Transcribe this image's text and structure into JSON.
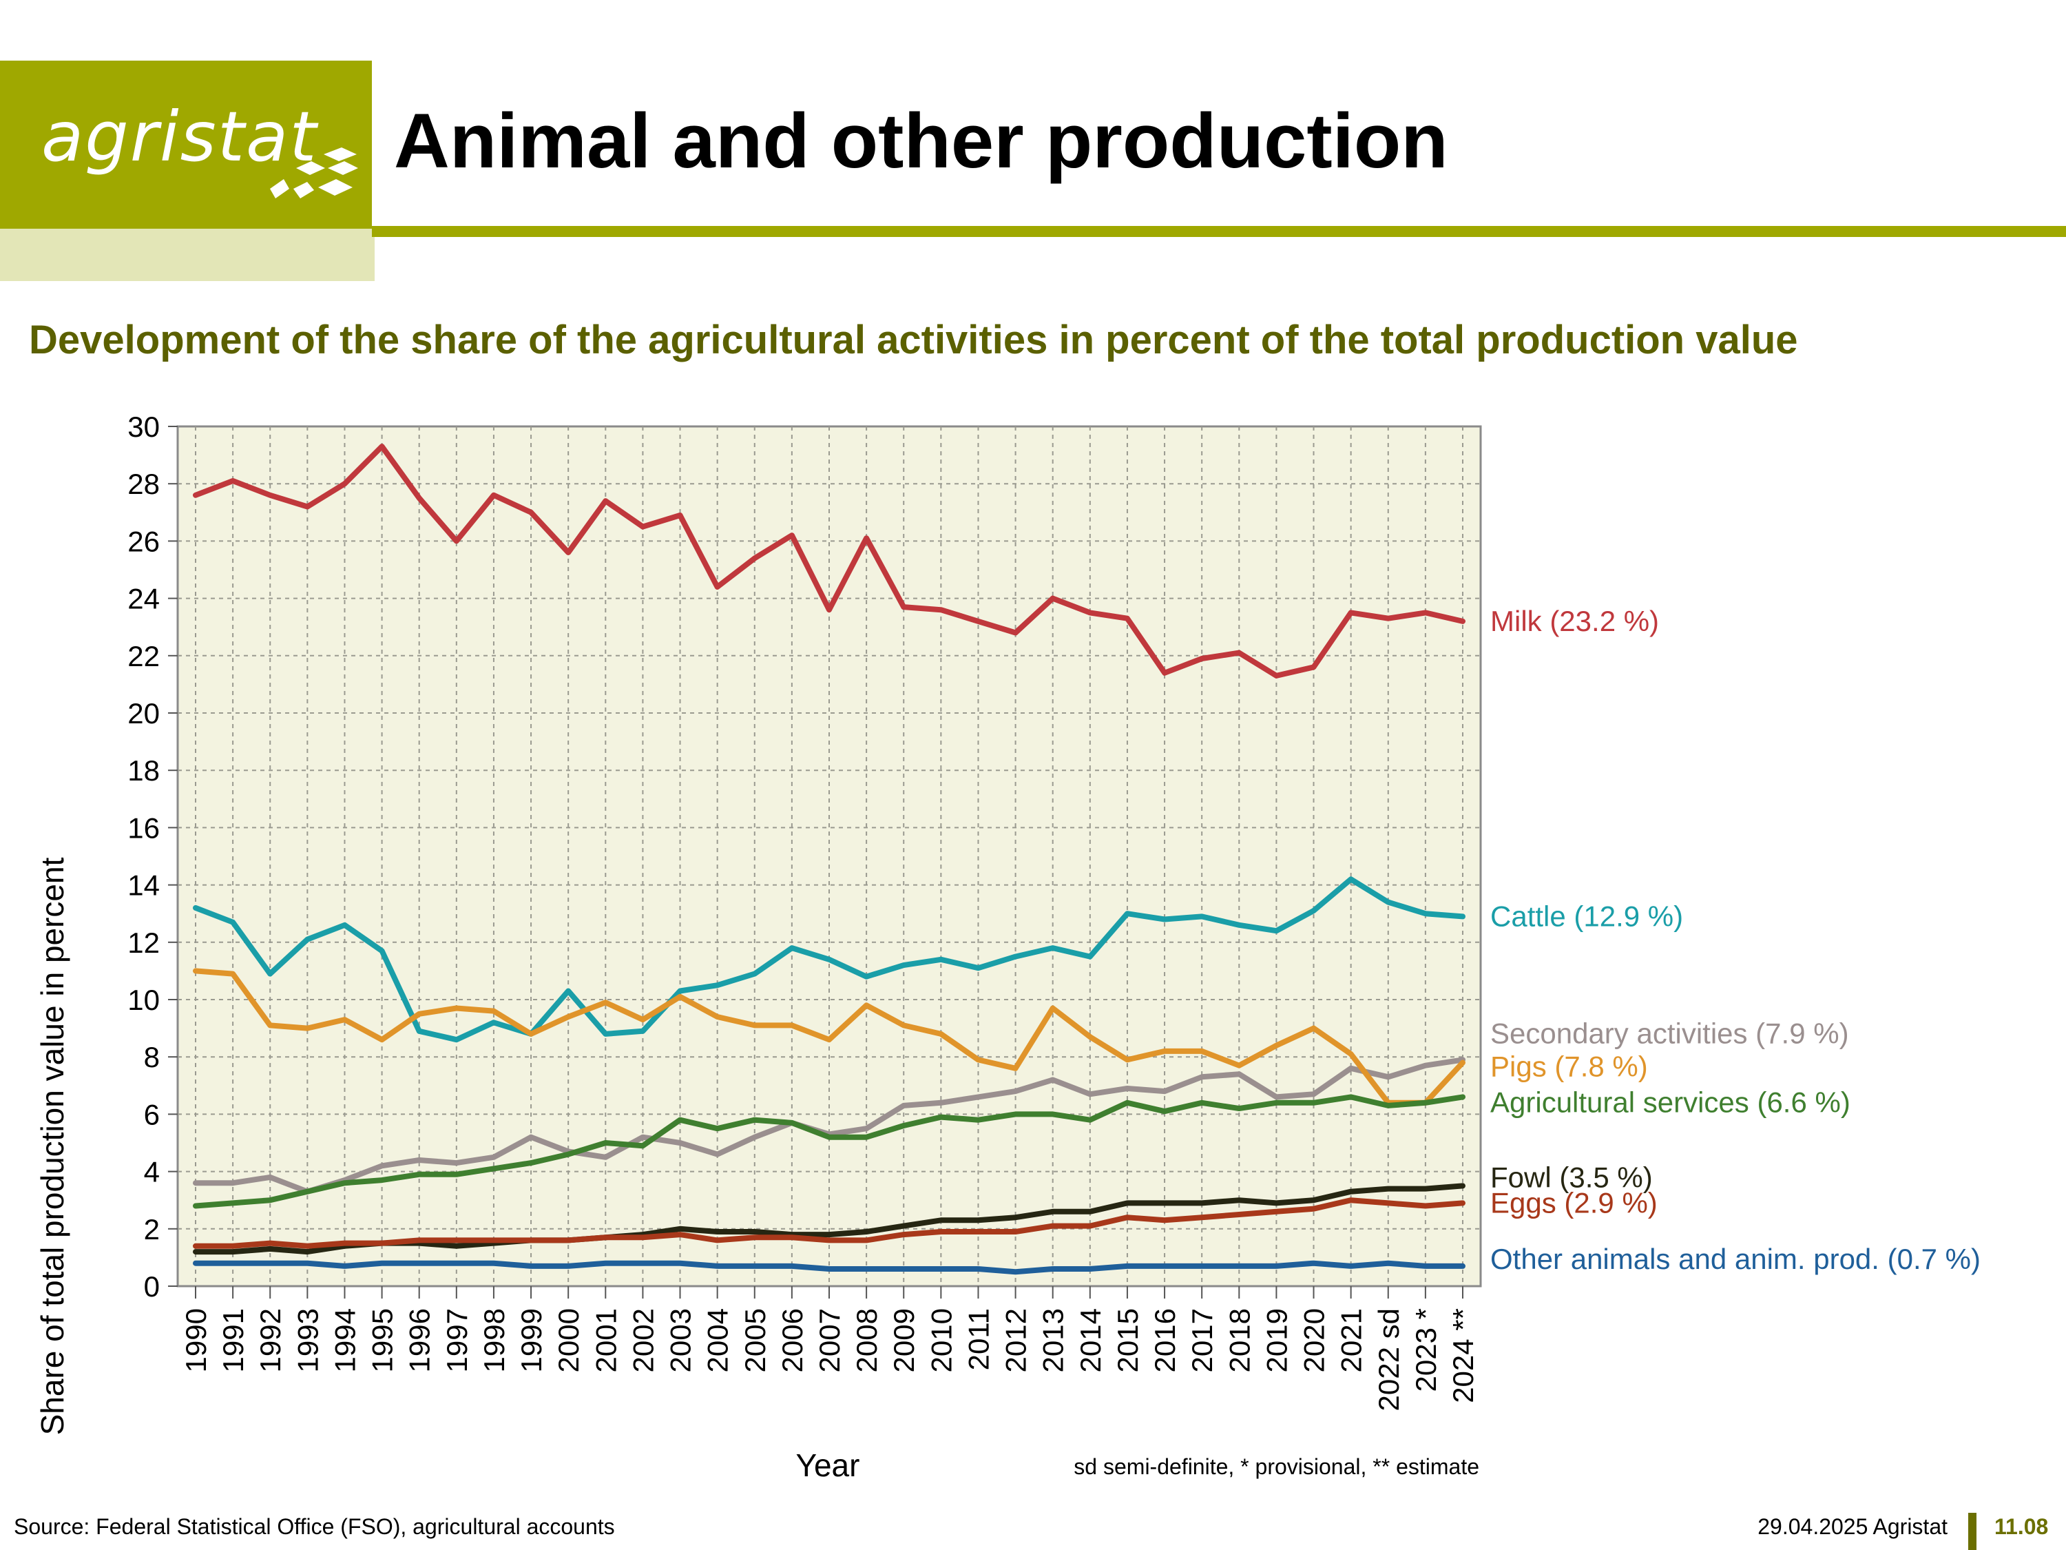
{
  "header": {
    "logo_text": "agristat",
    "title": "Animal and other production"
  },
  "subtitle": "Development of the share of the agricultural activities in percent of the total production value",
  "footer": {
    "source": "Source: Federal Statistical Office (FSO), agricultural accounts",
    "date": "29.04.2025 Agristat",
    "page": "11.08"
  },
  "colors": {
    "brand": "#9fa800",
    "brand_pale": "#e3e6b7",
    "plot_bg": "#f3f3e0",
    "subtitle": "#5b6000"
  },
  "chart_data": {
    "type": "line",
    "ylabel": "Share of total production value in percent",
    "xlabel": "Year",
    "note": "sd semi-definite, * provisional, ** estimate",
    "ylim": [
      0,
      30
    ],
    "yticks": [
      0,
      2,
      4,
      6,
      8,
      10,
      12,
      14,
      16,
      18,
      20,
      22,
      24,
      26,
      28,
      30
    ],
    "grid": true,
    "legend": "right-inline",
    "categories": [
      "1990",
      "1991",
      "1992",
      "1993",
      "1994",
      "1995",
      "1996",
      "1997",
      "1998",
      "1999",
      "2000",
      "2001",
      "2002",
      "2003",
      "2004",
      "2005",
      "2006",
      "2007",
      "2008",
      "2009",
      "2010",
      "2011",
      "2012",
      "2013",
      "2014",
      "2015",
      "2016",
      "2017",
      "2018",
      "2019",
      "2020",
      "2021",
      "2022 sd",
      "2023 *",
      "2024 **"
    ],
    "series": [
      {
        "name": "Milk (23.2 %)",
        "color": "#c0383c",
        "values": [
          27.6,
          28.1,
          27.6,
          27.2,
          28.0,
          29.3,
          27.5,
          26.0,
          27.6,
          27.0,
          25.6,
          27.4,
          26.5,
          26.9,
          24.4,
          25.4,
          26.2,
          23.6,
          26.1,
          23.7,
          23.6,
          23.2,
          22.8,
          24.0,
          23.5,
          23.3,
          21.4,
          21.9,
          22.1,
          21.3,
          21.6,
          23.5,
          23.3,
          23.5,
          23.2
        ]
      },
      {
        "name": "Cattle (12.9 %)",
        "color": "#1a9ea8",
        "values": [
          13.2,
          12.7,
          10.9,
          12.1,
          12.6,
          11.7,
          8.9,
          8.6,
          9.2,
          8.8,
          10.3,
          8.8,
          8.9,
          10.3,
          10.5,
          10.9,
          11.8,
          11.4,
          10.8,
          11.2,
          11.4,
          11.1,
          11.5,
          11.8,
          11.5,
          13.0,
          12.8,
          12.9,
          12.6,
          12.4,
          13.1,
          14.2,
          13.4,
          13.0,
          12.9
        ]
      },
      {
        "name": "Secondary activities (7.9 %)",
        "color": "#9a8f8f",
        "values": [
          3.6,
          3.6,
          3.8,
          3.3,
          3.7,
          4.2,
          4.4,
          4.3,
          4.5,
          5.2,
          4.7,
          4.5,
          5.2,
          5.0,
          4.6,
          5.2,
          5.7,
          5.3,
          5.5,
          6.3,
          6.4,
          6.6,
          6.8,
          7.2,
          6.7,
          6.9,
          6.8,
          7.3,
          7.4,
          6.6,
          6.7,
          7.6,
          7.3,
          7.7,
          7.9
        ]
      },
      {
        "name": "Pigs (7.8 %)",
        "color": "#e0942a",
        "values": [
          11.0,
          10.9,
          9.1,
          9.0,
          9.3,
          8.6,
          9.5,
          9.7,
          9.6,
          8.8,
          9.4,
          9.9,
          9.3,
          10.1,
          9.4,
          9.1,
          9.1,
          8.6,
          9.8,
          9.1,
          8.8,
          7.9,
          7.6,
          9.7,
          8.7,
          7.9,
          8.2,
          8.2,
          7.7,
          8.4,
          9.0,
          8.1,
          6.4,
          6.4,
          7.8
        ]
      },
      {
        "name": "Agricultural services (6.6 %)",
        "color": "#3f7f2f",
        "values": [
          2.8,
          2.9,
          3.0,
          3.3,
          3.6,
          3.7,
          3.9,
          3.9,
          4.1,
          4.3,
          4.6,
          5.0,
          4.9,
          5.8,
          5.5,
          5.8,
          5.7,
          5.2,
          5.2,
          5.6,
          5.9,
          5.8,
          6.0,
          6.0,
          5.8,
          6.4,
          6.1,
          6.4,
          6.2,
          6.4,
          6.4,
          6.6,
          6.3,
          6.4,
          6.6
        ]
      },
      {
        "name": "Fowl (3.5 %)",
        "color": "#262612",
        "values": [
          1.2,
          1.2,
          1.3,
          1.2,
          1.4,
          1.5,
          1.5,
          1.4,
          1.5,
          1.6,
          1.6,
          1.7,
          1.8,
          2.0,
          1.9,
          1.9,
          1.8,
          1.8,
          1.9,
          2.1,
          2.3,
          2.3,
          2.4,
          2.6,
          2.6,
          2.9,
          2.9,
          2.9,
          3.0,
          2.9,
          3.0,
          3.3,
          3.4,
          3.4,
          3.5
        ]
      },
      {
        "name": "Eggs (2.9 %)",
        "color": "#a8381a",
        "values": [
          1.4,
          1.4,
          1.5,
          1.4,
          1.5,
          1.5,
          1.6,
          1.6,
          1.6,
          1.6,
          1.6,
          1.7,
          1.7,
          1.8,
          1.6,
          1.7,
          1.7,
          1.6,
          1.6,
          1.8,
          1.9,
          1.9,
          1.9,
          2.1,
          2.1,
          2.4,
          2.3,
          2.4,
          2.5,
          2.6,
          2.7,
          3.0,
          2.9,
          2.8,
          2.9
        ]
      },
      {
        "name": "Other animals and anim. prod. (0.7 %)",
        "color": "#1f5f9a",
        "values": [
          0.8,
          0.8,
          0.8,
          0.8,
          0.7,
          0.8,
          0.8,
          0.8,
          0.8,
          0.7,
          0.7,
          0.8,
          0.8,
          0.8,
          0.7,
          0.7,
          0.7,
          0.6,
          0.6,
          0.6,
          0.6,
          0.6,
          0.5,
          0.6,
          0.6,
          0.7,
          0.7,
          0.7,
          0.7,
          0.7,
          0.8,
          0.7,
          0.8,
          0.7,
          0.7
        ]
      }
    ]
  }
}
